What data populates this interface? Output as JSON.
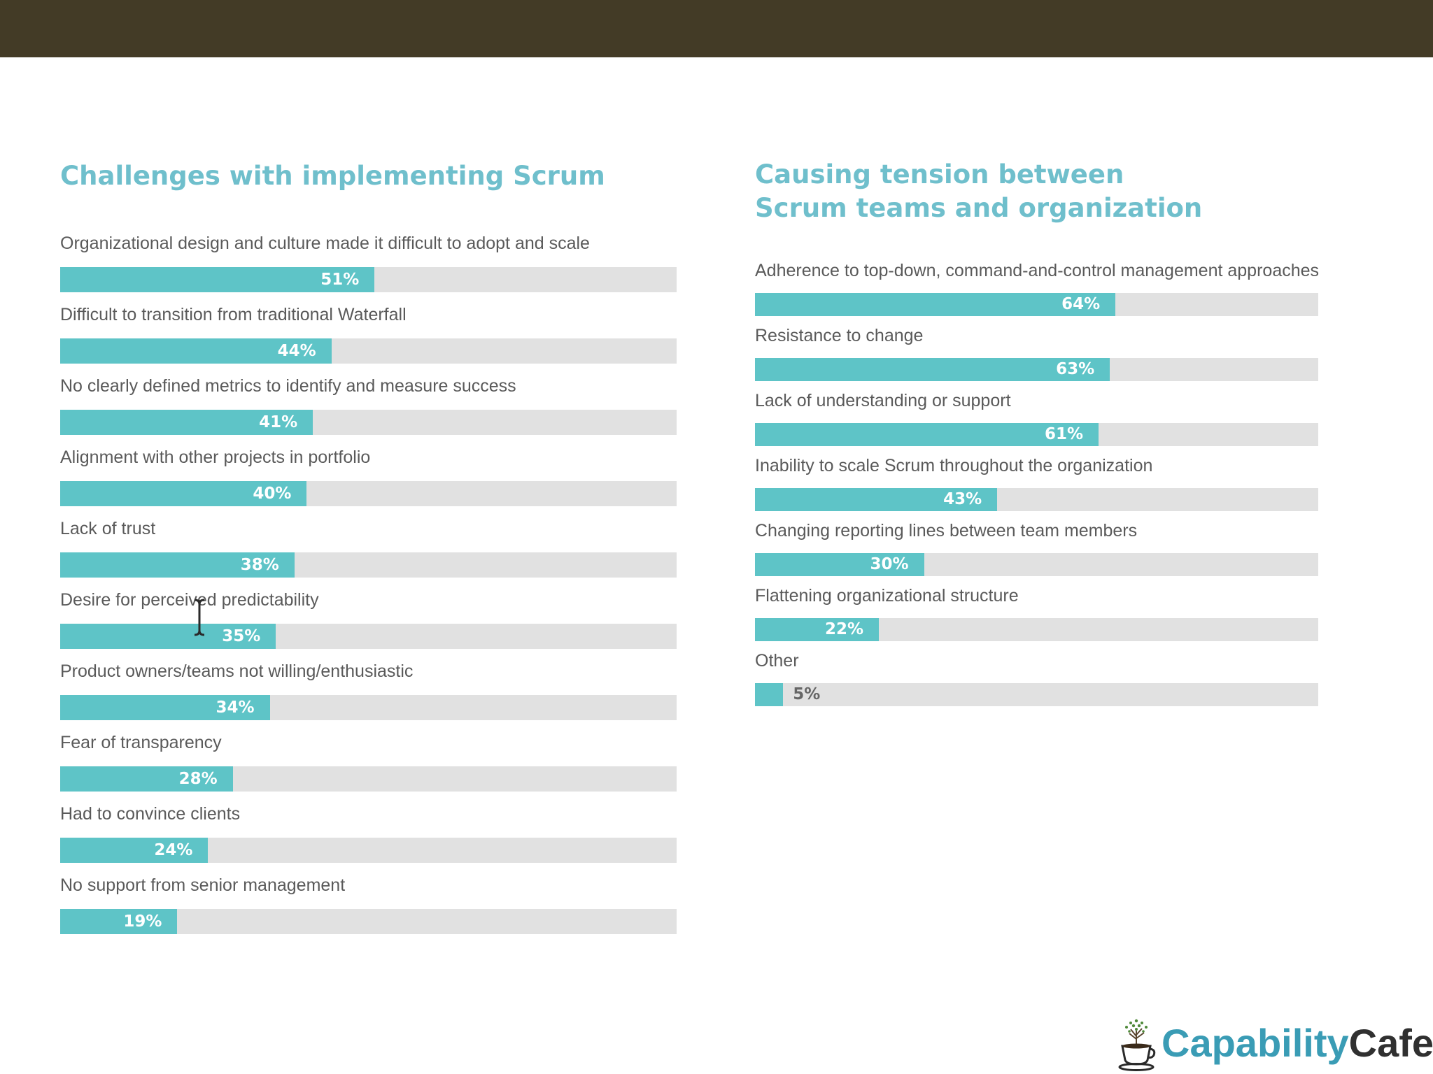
{
  "chart_data": [
    {
      "type": "bar",
      "orientation": "horizontal",
      "title": "Challenges with implementing Scrum",
      "categories": [
        "Organizational design and culture made it difficult to adopt and scale",
        "Difficult to transition from traditional Waterfall",
        "No clearly defined metrics to identify and measure success",
        "Alignment with other projects in portfolio",
        "Lack of trust",
        "Desire for perceived predictability",
        "Product owners/teams not willing/enthusiastic",
        "Fear of transparency",
        "Had to convince clients",
        "No support from senior management"
      ],
      "values": [
        51,
        44,
        41,
        40,
        38,
        35,
        34,
        28,
        24,
        19
      ],
      "value_labels": [
        "51%",
        "44%",
        "41%",
        "40%",
        "38%",
        "35%",
        "34%",
        "28%",
        "24%",
        "19%"
      ],
      "xlim": [
        0,
        100
      ],
      "unit": "%"
    },
    {
      "type": "bar",
      "orientation": "horizontal",
      "title": "Causing tension between Scrum teams and organization",
      "categories": [
        "Adherence to top-down, command-and-control management approaches",
        "Resistance to change",
        "Lack of understanding or support",
        "Inability to scale Scrum throughout the organization",
        "Changing reporting lines between team members",
        "Flattening organizational structure",
        "Other"
      ],
      "values": [
        64,
        63,
        61,
        43,
        30,
        22,
        5
      ],
      "value_labels": [
        "64%",
        "63%",
        "61%",
        "43%",
        "30%",
        "22%",
        "5%"
      ],
      "xlim": [
        0,
        100
      ],
      "unit": "%"
    }
  ],
  "logo": {
    "part1": "Capability",
    "part2": "Cafe"
  },
  "colors": {
    "header_band": "#433b26",
    "title": "#6fbfcc",
    "bar_fill": "#5ec4c7",
    "bar_track": "#e1e1e1",
    "label_text": "#5a5a5a",
    "logo_blue": "#3a9cb5",
    "logo_dark": "#303030"
  }
}
